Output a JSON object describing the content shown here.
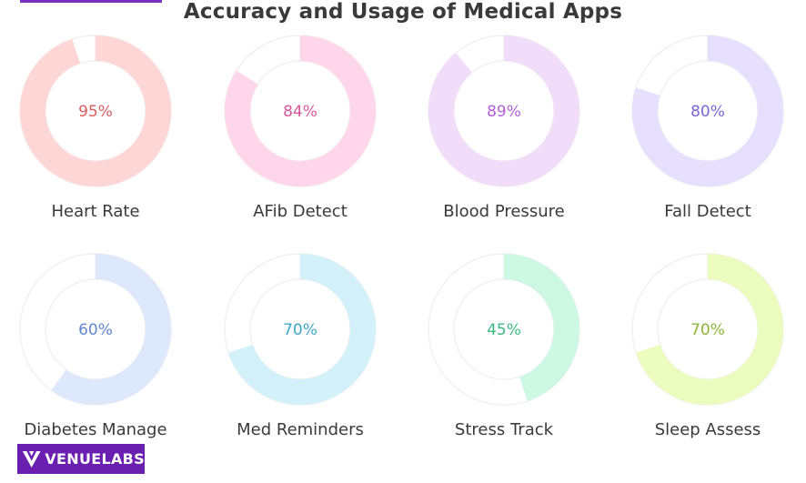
{
  "title": "Accuracy and Usage of Medical Apps",
  "logo": {
    "text": "VENUELABS"
  },
  "chart_data": {
    "type": "donut",
    "title": "Accuracy and Usage of Medical Apps",
    "unit": "%",
    "items": [
      {
        "label": "Heart Rate",
        "value": 95,
        "value_label": "95%",
        "fill": "#ffd6d6",
        "text": "#d95f5f"
      },
      {
        "label": "AFib Detect",
        "value": 84,
        "value_label": "84%",
        "fill": "#ffd6ea",
        "text": "#d9569b"
      },
      {
        "label": "Blood Pressure",
        "value": 89,
        "value_label": "89%",
        "fill": "#f1dcfa",
        "text": "#b260d6"
      },
      {
        "label": "Fall Detect",
        "value": 80,
        "value_label": "80%",
        "fill": "#e6dffd",
        "text": "#7a66d4"
      },
      {
        "label": "Diabetes Manage",
        "value": 60,
        "value_label": "60%",
        "fill": "#dde8fd",
        "text": "#5f86cf"
      },
      {
        "label": "Med Reminders",
        "value": 70,
        "value_label": "70%",
        "fill": "#d3f1fb",
        "text": "#3ea6c9"
      },
      {
        "label": "Stress Track",
        "value": 45,
        "value_label": "45%",
        "fill": "#cdf8e3",
        "text": "#3fb886"
      },
      {
        "label": "Sleep Assess",
        "value": 70,
        "value_label": "70%",
        "fill": "#ebfcbe",
        "text": "#8fb33a"
      }
    ],
    "track_color": "#f1f1f1"
  }
}
